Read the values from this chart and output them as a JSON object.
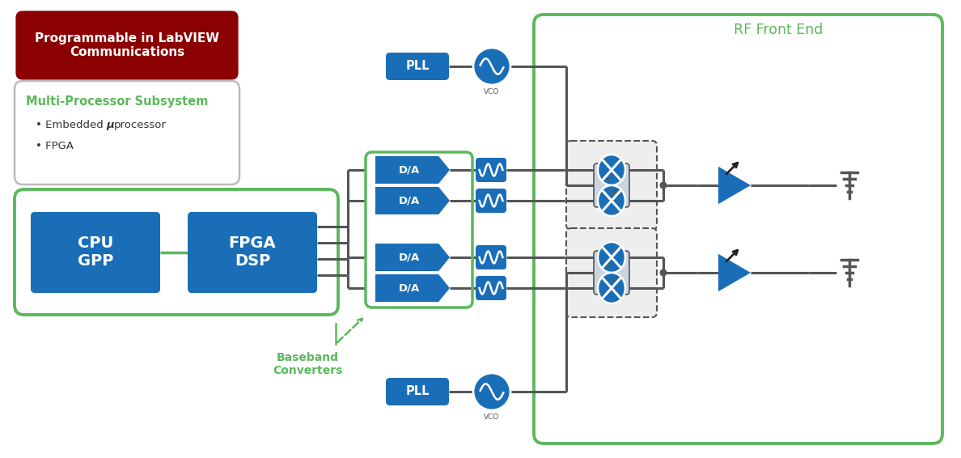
{
  "bg": "#ffffff",
  "dark_red": "#8B0000",
  "green": "#5BB85C",
  "blue": "#1A6EB8",
  "gray": "#555555",
  "dashed_fill": "#eeeeee",
  "title": "Programmable in LabVIEW\nCommunications",
  "subtitle": "Multi-Processor Subsystem",
  "b1_pre": "• Embedded ",
  "b1_mu": "μ",
  "b1_post": "processor",
  "b2": "• FPGA",
  "cpu": "CPU\nGPP",
  "fpga_dsp": "FPGA\nDSP",
  "pll": "PLL",
  "da": "D/A",
  "rf_front": "RF Front End",
  "bb_conv": "Baseband\nConverters"
}
